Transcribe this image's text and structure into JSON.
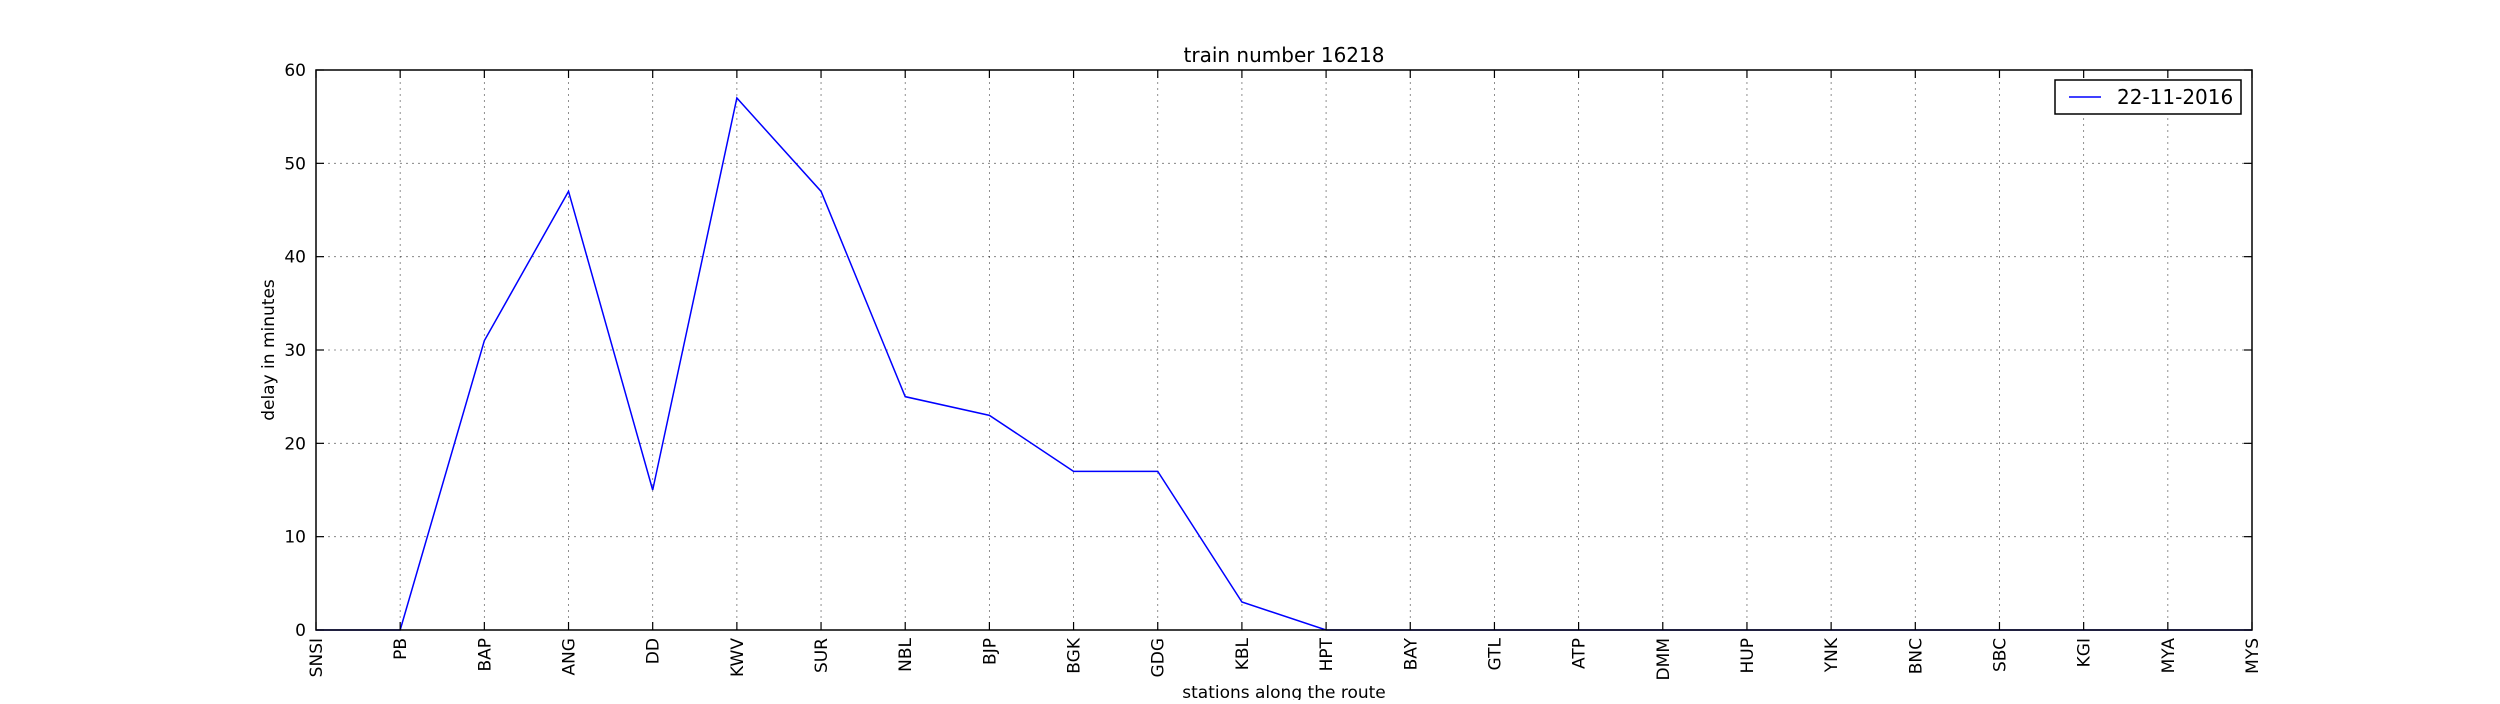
{
  "chart_data": {
    "type": "line",
    "title": "train number 16218",
    "xlabel": "stations along the route",
    "ylabel": "delay in minutes",
    "categories": [
      "SNSI",
      "PB",
      "BAP",
      "ANG",
      "DD",
      "KWV",
      "SUR",
      "NBL",
      "BJP",
      "BGK",
      "GDG",
      "KBL",
      "HPT",
      "BAY",
      "GTL",
      "ATP",
      "DMM",
      "HUP",
      "YNK",
      "BNC",
      "SBC",
      "KGI",
      "MYA",
      "MYS"
    ],
    "series": [
      {
        "name": "22-11-2016",
        "color": "#0000ff",
        "values": [
          0,
          0,
          31,
          47,
          15,
          57,
          47,
          25,
          23,
          17,
          17,
          3,
          0,
          0,
          0,
          0,
          0,
          0,
          0,
          0,
          0,
          0,
          0,
          0
        ]
      }
    ],
    "ylim": [
      0,
      60
    ],
    "yticks": [
      0,
      10,
      20,
      30,
      40,
      50,
      60
    ],
    "grid": true,
    "grid_style": "dotted",
    "legend_position": "top-right"
  }
}
